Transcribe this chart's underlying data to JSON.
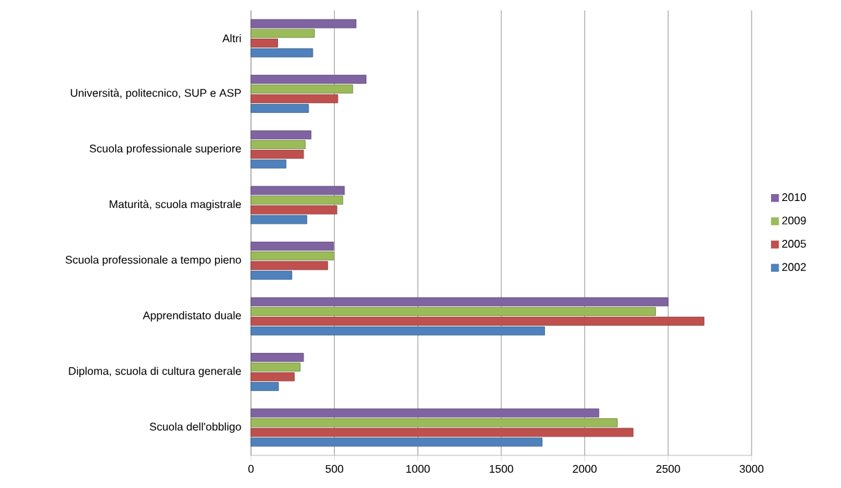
{
  "chart_data": {
    "type": "bar",
    "orientation": "horizontal",
    "categories": [
      "Altri",
      "Università, politecnico, SUP e ASP",
      "Scuola professionale superiore",
      "Maturità, scuola magistrale",
      "Scuola professionale a tempo pieno",
      "Apprendistato duale",
      "Diploma, scuola di cultura generale",
      "Scuola dell'obbligo"
    ],
    "series": [
      {
        "name": "2010",
        "color": "#8064a2",
        "values": [
          630,
          690,
          360,
          560,
          495,
          2500,
          315,
          2085
        ]
      },
      {
        "name": "2009",
        "color": "#9bbb59",
        "values": [
          380,
          610,
          325,
          550,
          495,
          2425,
          295,
          2195
        ]
      },
      {
        "name": "2005",
        "color": "#c0504d",
        "values": [
          160,
          520,
          315,
          515,
          460,
          2715,
          260,
          2290
        ]
      },
      {
        "name": "2002",
        "color": "#4f81bd",
        "values": [
          370,
          345,
          210,
          335,
          245,
          1760,
          165,
          1745
        ]
      }
    ],
    "xlim": [
      0,
      3000
    ],
    "xticks": [
      0,
      500,
      1000,
      1500,
      2000,
      2500,
      3000
    ],
    "grid": "x",
    "legend": "right"
  }
}
